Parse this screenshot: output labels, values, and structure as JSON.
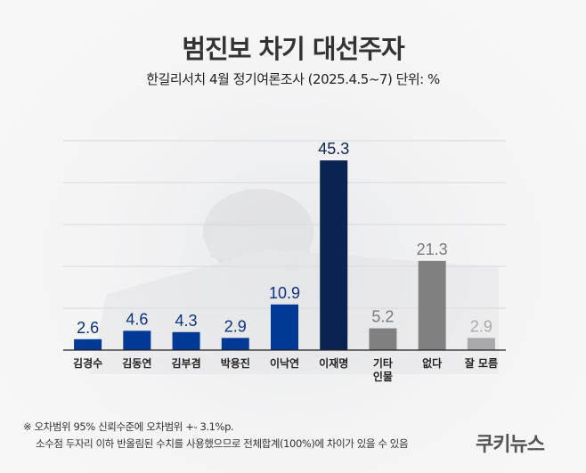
{
  "chart_data": {
    "type": "bar",
    "title": "범진보 차기 대선주자",
    "subtitle": "한길리서치 4월 정기여론조사 (2025.4.5~7) 단위: %",
    "categories": [
      "김경수",
      "김동연",
      "김부겸",
      "박용진",
      "이낙연",
      "이재명",
      "기타\n인물",
      "없다",
      "잘 모름"
    ],
    "values": [
      2.6,
      4.6,
      4.3,
      2.9,
      10.9,
      45.3,
      5.2,
      21.3,
      2.9
    ],
    "data_labels": [
      "2.6",
      "4.6",
      "4.3",
      "2.9",
      "10.9",
      "45.3",
      "5.2",
      "21.3",
      "2.9"
    ],
    "bar_colors": [
      "#003a96",
      "#003a96",
      "#003a96",
      "#003a96",
      "#003a96",
      "#0b2350",
      "#808080",
      "#808080",
      "#a9a9ab"
    ],
    "label_colors": [
      "#0b3380",
      "#0b3380",
      "#0b3380",
      "#0b3380",
      "#0b3380",
      "#0b2350",
      "#7a7a7a",
      "#7a7a7a",
      "#aaaaaa"
    ],
    "ylim": [
      0,
      50
    ],
    "grid": true,
    "grid_step": 10,
    "xlabel": "",
    "ylabel": ""
  },
  "notes": [
    "※ 오차범위 95% 신뢰수준에 오차범위 +- 3.1%p.",
    "소수점 두자리 이하 반올림된 수치를 사용했으므로 전체합계(100%)에 차이가 있을 수 있음"
  ],
  "logo": "쿠키뉴스"
}
